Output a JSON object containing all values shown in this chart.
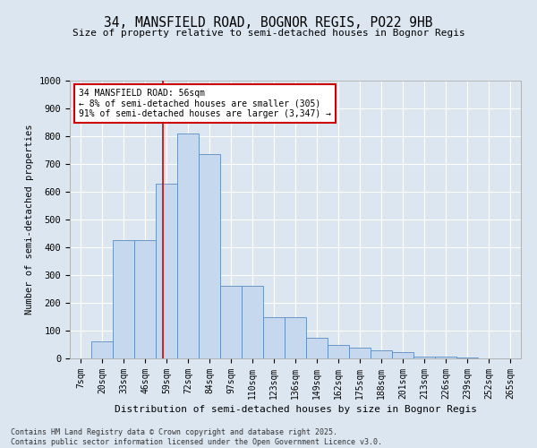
{
  "title_line1": "34, MANSFIELD ROAD, BOGNOR REGIS, PO22 9HB",
  "title_line2": "Size of property relative to semi-detached houses in Bognor Regis",
  "xlabel": "Distribution of semi-detached houses by size in Bognor Regis",
  "ylabel": "Number of semi-detached properties",
  "categories": [
    "7sqm",
    "20sqm",
    "33sqm",
    "46sqm",
    "59sqm",
    "72sqm",
    "84sqm",
    "97sqm",
    "110sqm",
    "123sqm",
    "136sqm",
    "149sqm",
    "162sqm",
    "175sqm",
    "188sqm",
    "201sqm",
    "213sqm",
    "226sqm",
    "239sqm",
    "252sqm",
    "265sqm"
  ],
  "values": [
    1,
    62,
    425,
    425,
    630,
    810,
    735,
    260,
    260,
    150,
    150,
    75,
    50,
    38,
    30,
    22,
    5,
    8,
    4,
    1,
    1
  ],
  "bar_color": "#c5d8ed",
  "bar_edge_color": "#5b8bbf",
  "bg_color": "#dce6f1",
  "grid_color": "#ffffff",
  "property_line_x": 3.85,
  "annotation_title": "34 MANSFIELD ROAD: 56sqm",
  "annotation_line1": "← 8% of semi-detached houses are smaller (305)",
  "annotation_line2": "91% of semi-detached houses are larger (3,347) →",
  "annotation_box_color": "#ffffff",
  "annotation_box_edge": "#cc0000",
  "vline_color": "#cc0000",
  "footer_line1": "Contains HM Land Registry data © Crown copyright and database right 2025.",
  "footer_line2": "Contains public sector information licensed under the Open Government Licence v3.0.",
  "ylim": [
    0,
    1000
  ],
  "yticks": [
    0,
    100,
    200,
    300,
    400,
    500,
    600,
    700,
    800,
    900,
    1000
  ]
}
